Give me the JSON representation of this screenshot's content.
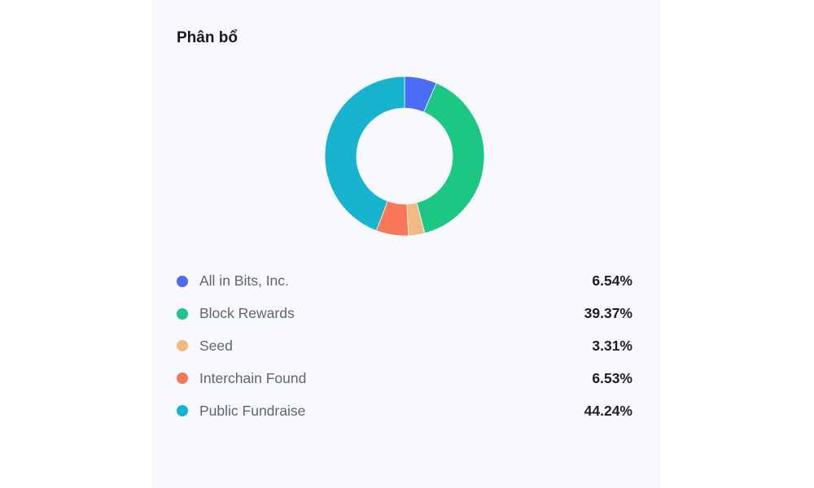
{
  "panel": {
    "title": "Phân bổ"
  },
  "chart_data": {
    "type": "pie",
    "subtype": "donut",
    "title": "Phân bổ",
    "categories": [
      "All in Bits, Inc.",
      "Block Rewards",
      "Seed",
      "Interchain Found",
      "Public Fundraise"
    ],
    "values": [
      6.54,
      39.37,
      3.31,
      6.53,
      44.24
    ],
    "colors": [
      "#4a6cf7",
      "#1cc783",
      "#f2b984",
      "#fa7759",
      "#17b3cf"
    ],
    "legend_position": "bottom",
    "unit": "%"
  },
  "legend": [
    {
      "label": "All in Bits, Inc.",
      "value": "6.54%",
      "color": "#4a6cf7"
    },
    {
      "label": "Block Rewards",
      "value": "39.37%",
      "color": "#1cc783"
    },
    {
      "label": "Seed",
      "value": "3.31%",
      "color": "#f2b984"
    },
    {
      "label": "Interchain Found",
      "value": "6.53%",
      "color": "#fa7759"
    },
    {
      "label": "Public Fundraise",
      "value": "44.24%",
      "color": "#17b3cf"
    }
  ]
}
